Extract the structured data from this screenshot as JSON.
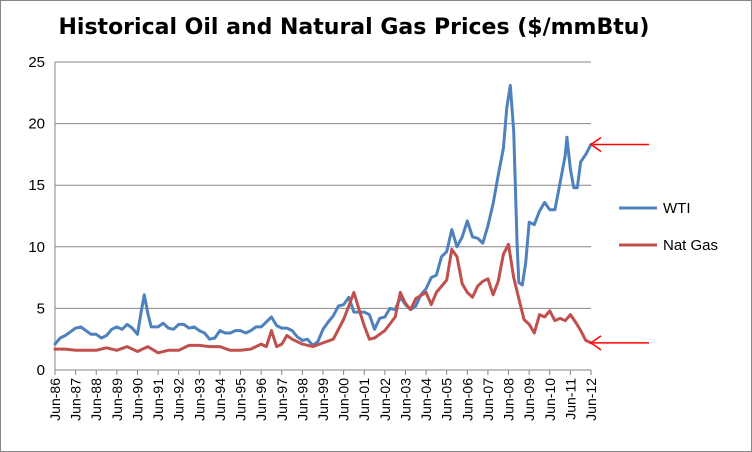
{
  "chart_data": {
    "type": "line",
    "title": "Historical Oil and Natural Gas Prices ($/mmBtu)",
    "xlabel": "",
    "ylabel": "",
    "ylim": [
      0,
      25
    ],
    "yticks": [
      0,
      5,
      10,
      15,
      20,
      25
    ],
    "grid": true,
    "legend_position": "right",
    "categories": [
      "Jun-86",
      "Jun-87",
      "Jun-88",
      "Jun-89",
      "Jun-90",
      "Jun-91",
      "Jun-92",
      "Jun-93",
      "Jun-94",
      "Jun-95",
      "Jun-96",
      "Jun-97",
      "Jun-98",
      "Jun-99",
      "Jun-00",
      "Jun-01",
      "Jun-02",
      "Jun-03",
      "Jun-04",
      "Jun-05",
      "Jun-06",
      "Jun-07",
      "Jun-08",
      "Jun-09",
      "Jun-10",
      "Jun-11",
      "Jun-12"
    ],
    "series": [
      {
        "name": "WTI",
        "color": "#4f81bd",
        "points": [
          [
            "1986-06",
            2.1
          ],
          [
            "1986-09",
            2.6
          ],
          [
            "1986-12",
            2.8
          ],
          [
            "1987-03",
            3.1
          ],
          [
            "1987-06",
            3.4
          ],
          [
            "1987-09",
            3.5
          ],
          [
            "1987-12",
            3.2
          ],
          [
            "1988-03",
            2.9
          ],
          [
            "1988-06",
            2.9
          ],
          [
            "1988-09",
            2.6
          ],
          [
            "1988-12",
            2.8
          ],
          [
            "1989-03",
            3.3
          ],
          [
            "1989-06",
            3.5
          ],
          [
            "1989-09",
            3.3
          ],
          [
            "1989-12",
            3.7
          ],
          [
            "1990-03",
            3.4
          ],
          [
            "1990-06",
            2.9
          ],
          [
            "1990-08",
            4.6
          ],
          [
            "1990-10",
            6.1
          ],
          [
            "1990-12",
            4.6
          ],
          [
            "1991-02",
            3.5
          ],
          [
            "1991-06",
            3.5
          ],
          [
            "1991-09",
            3.8
          ],
          [
            "1991-12",
            3.4
          ],
          [
            "1992-03",
            3.3
          ],
          [
            "1992-06",
            3.7
          ],
          [
            "1992-09",
            3.7
          ],
          [
            "1992-12",
            3.4
          ],
          [
            "1993-03",
            3.5
          ],
          [
            "1993-06",
            3.2
          ],
          [
            "1993-09",
            3.0
          ],
          [
            "1993-12",
            2.5
          ],
          [
            "1994-03",
            2.6
          ],
          [
            "1994-06",
            3.2
          ],
          [
            "1994-09",
            3.0
          ],
          [
            "1994-12",
            3.0
          ],
          [
            "1995-03",
            3.2
          ],
          [
            "1995-06",
            3.2
          ],
          [
            "1995-09",
            3.0
          ],
          [
            "1995-12",
            3.2
          ],
          [
            "1996-03",
            3.5
          ],
          [
            "1996-06",
            3.5
          ],
          [
            "1996-09",
            3.9
          ],
          [
            "1996-12",
            4.3
          ],
          [
            "1997-03",
            3.6
          ],
          [
            "1997-06",
            3.4
          ],
          [
            "1997-09",
            3.4
          ],
          [
            "1997-12",
            3.2
          ],
          [
            "1998-03",
            2.7
          ],
          [
            "1998-06",
            2.4
          ],
          [
            "1998-09",
            2.5
          ],
          [
            "1998-12",
            2.0
          ],
          [
            "1999-03",
            2.3
          ],
          [
            "1999-06",
            3.3
          ],
          [
            "1999-09",
            3.9
          ],
          [
            "1999-12",
            4.4
          ],
          [
            "2000-03",
            5.2
          ],
          [
            "2000-06",
            5.3
          ],
          [
            "2000-09",
            5.9
          ],
          [
            "2000-12",
            4.7
          ],
          [
            "2001-03",
            4.7
          ],
          [
            "2001-06",
            4.7
          ],
          [
            "2001-09",
            4.5
          ],
          [
            "2001-12",
            3.3
          ],
          [
            "2002-03",
            4.2
          ],
          [
            "2002-06",
            4.3
          ],
          [
            "2002-09",
            5.0
          ],
          [
            "2002-12",
            4.9
          ],
          [
            "2003-03",
            5.9
          ],
          [
            "2003-06",
            5.3
          ],
          [
            "2003-09",
            4.9
          ],
          [
            "2003-12",
            5.2
          ],
          [
            "2004-03",
            6.1
          ],
          [
            "2004-06",
            6.6
          ],
          [
            "2004-09",
            7.5
          ],
          [
            "2004-12",
            7.7
          ],
          [
            "2005-03",
            9.2
          ],
          [
            "2005-06",
            9.6
          ],
          [
            "2005-09",
            11.4
          ],
          [
            "2005-12",
            10.0
          ],
          [
            "2006-03",
            10.8
          ],
          [
            "2006-06",
            12.1
          ],
          [
            "2006-09",
            10.8
          ],
          [
            "2006-12",
            10.7
          ],
          [
            "2007-03",
            10.3
          ],
          [
            "2007-06",
            11.7
          ],
          [
            "2007-09",
            13.5
          ],
          [
            "2007-12",
            15.8
          ],
          [
            "2008-03",
            18.0
          ],
          [
            "2008-05",
            21.3
          ],
          [
            "2008-07",
            23.1
          ],
          [
            "2008-09",
            19.4
          ],
          [
            "2008-11",
            10.2
          ],
          [
            "2008-12",
            7.1
          ],
          [
            "2009-02",
            6.9
          ],
          [
            "2009-04",
            8.7
          ],
          [
            "2009-06",
            12.0
          ],
          [
            "2009-09",
            11.8
          ],
          [
            "2009-12",
            12.9
          ],
          [
            "2010-03",
            13.6
          ],
          [
            "2010-06",
            13.0
          ],
          [
            "2010-09",
            13.0
          ],
          [
            "2010-12",
            15.2
          ],
          [
            "2011-03",
            17.4
          ],
          [
            "2011-04",
            18.9
          ],
          [
            "2011-06",
            16.3
          ],
          [
            "2011-08",
            14.8
          ],
          [
            "2011-10",
            14.8
          ],
          [
            "2011-12",
            16.9
          ],
          [
            "2012-03",
            17.5
          ],
          [
            "2012-06",
            18.3
          ]
        ]
      },
      {
        "name": "Nat Gas",
        "color": "#c0504d",
        "points": [
          [
            "1986-06",
            1.7
          ],
          [
            "1986-12",
            1.7
          ],
          [
            "1987-06",
            1.6
          ],
          [
            "1987-12",
            1.6
          ],
          [
            "1988-06",
            1.6
          ],
          [
            "1988-12",
            1.8
          ],
          [
            "1989-06",
            1.6
          ],
          [
            "1989-12",
            1.9
          ],
          [
            "1990-06",
            1.5
          ],
          [
            "1990-12",
            1.9
          ],
          [
            "1991-06",
            1.4
          ],
          [
            "1991-12",
            1.6
          ],
          [
            "1992-06",
            1.6
          ],
          [
            "1992-12",
            2.0
          ],
          [
            "1993-06",
            2.0
          ],
          [
            "1993-12",
            1.9
          ],
          [
            "1994-06",
            1.9
          ],
          [
            "1994-12",
            1.6
          ],
          [
            "1995-06",
            1.6
          ],
          [
            "1995-12",
            1.7
          ],
          [
            "1996-06",
            2.1
          ],
          [
            "1996-09",
            1.9
          ],
          [
            "1996-12",
            3.2
          ],
          [
            "1997-03",
            1.9
          ],
          [
            "1997-06",
            2.1
          ],
          [
            "1997-09",
            2.8
          ],
          [
            "1997-12",
            2.5
          ],
          [
            "1998-06",
            2.1
          ],
          [
            "1998-12",
            1.9
          ],
          [
            "1999-06",
            2.2
          ],
          [
            "1999-12",
            2.5
          ],
          [
            "2000-06",
            4.1
          ],
          [
            "2000-09",
            5.2
          ],
          [
            "2000-12",
            6.3
          ],
          [
            "2001-03",
            4.9
          ],
          [
            "2001-06",
            3.6
          ],
          [
            "2001-09",
            2.5
          ],
          [
            "2001-12",
            2.6
          ],
          [
            "2002-06",
            3.2
          ],
          [
            "2002-12",
            4.3
          ],
          [
            "2003-03",
            6.3
          ],
          [
            "2003-06",
            5.4
          ],
          [
            "2003-09",
            4.9
          ],
          [
            "2003-12",
            5.8
          ],
          [
            "2004-06",
            6.3
          ],
          [
            "2004-09",
            5.3
          ],
          [
            "2004-12",
            6.3
          ],
          [
            "2005-06",
            7.3
          ],
          [
            "2005-09",
            9.8
          ],
          [
            "2005-12",
            9.2
          ],
          [
            "2006-03",
            7.0
          ],
          [
            "2006-06",
            6.3
          ],
          [
            "2006-09",
            5.9
          ],
          [
            "2006-12",
            6.8
          ],
          [
            "2007-03",
            7.2
          ],
          [
            "2007-06",
            7.4
          ],
          [
            "2007-09",
            6.1
          ],
          [
            "2007-12",
            7.2
          ],
          [
            "2008-03",
            9.4
          ],
          [
            "2008-06",
            10.2
          ],
          [
            "2008-09",
            7.5
          ],
          [
            "2008-12",
            5.8
          ],
          [
            "2009-03",
            4.1
          ],
          [
            "2009-06",
            3.7
          ],
          [
            "2009-09",
            3.0
          ],
          [
            "2009-12",
            4.5
          ],
          [
            "2010-03",
            4.3
          ],
          [
            "2010-06",
            4.8
          ],
          [
            "2010-09",
            4.0
          ],
          [
            "2010-12",
            4.2
          ],
          [
            "2011-03",
            4.0
          ],
          [
            "2011-06",
            4.5
          ],
          [
            "2011-09",
            3.9
          ],
          [
            "2011-12",
            3.2
          ],
          [
            "2012-03",
            2.4
          ],
          [
            "2012-06",
            2.2
          ]
        ]
      }
    ],
    "annotations": [
      {
        "type": "arrow",
        "points_to": "WTI",
        "color": "#ff0000"
      },
      {
        "type": "arrow",
        "points_to": "Nat Gas",
        "color": "#ff0000"
      }
    ]
  }
}
